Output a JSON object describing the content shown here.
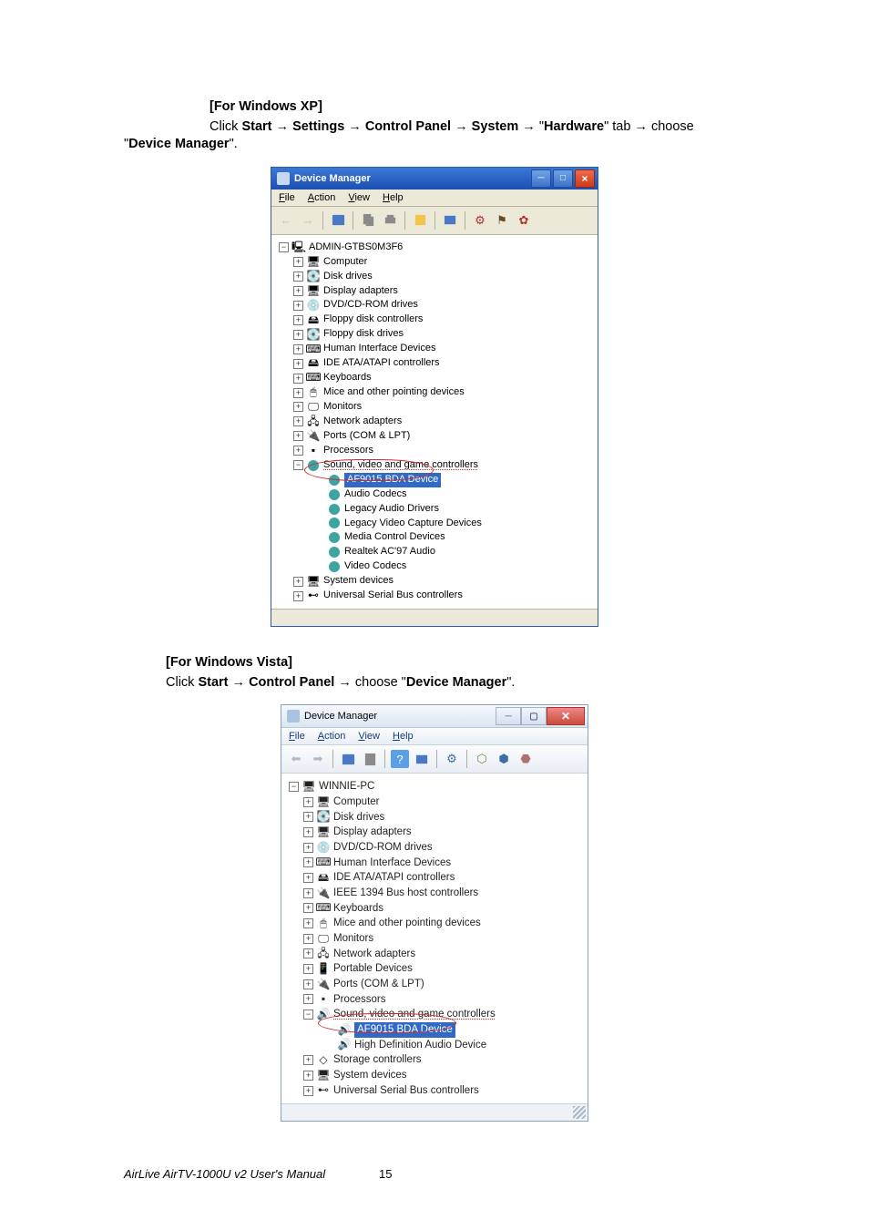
{
  "os_section_xp": {
    "heading": "[For Windows XP]",
    "instructions_parts": {
      "click": "Click ",
      "start": "Start",
      "arrow": " → ",
      "settings": "Settings",
      "control_panel": "Control Panel",
      "system": "System",
      "quote_open": " \"",
      "hardware": "Hardware",
      "hardware_suffix": "\" tab",
      "choose": " choose \"",
      "device_manager": "Device Manager",
      "end_quote": "\"."
    }
  },
  "os_section_vista": {
    "heading": "[For Windows Vista]",
    "instructions_parts": {
      "click": "Click ",
      "start": "Start",
      "arrow": " → ",
      "control_panel": "Control Panel",
      "choose": " choose \"",
      "device_manager": "Device Manager",
      "end_quote": "\"."
    }
  },
  "dm_xp": {
    "title": "Device Manager",
    "menubar": [
      "File",
      "Action",
      "View",
      "Help"
    ],
    "root": "ADMIN-GTBS0M3F6",
    "nodes": [
      {
        "label": "Computer",
        "exp": "+"
      },
      {
        "label": "Disk drives",
        "exp": "+"
      },
      {
        "label": "Display adapters",
        "exp": "+"
      },
      {
        "label": "DVD/CD-ROM drives",
        "exp": "+"
      },
      {
        "label": "Floppy disk controllers",
        "exp": "+"
      },
      {
        "label": "Floppy disk drives",
        "exp": "+"
      },
      {
        "label": "Human Interface Devices",
        "exp": "+"
      },
      {
        "label": "IDE ATA/ATAPI controllers",
        "exp": "+"
      },
      {
        "label": "Keyboards",
        "exp": "+"
      },
      {
        "label": "Mice and other pointing devices",
        "exp": "+"
      },
      {
        "label": "Monitors",
        "exp": "+"
      },
      {
        "label": "Network adapters",
        "exp": "+"
      },
      {
        "label": "Ports (COM & LPT)",
        "exp": "+"
      },
      {
        "label": "Processors",
        "exp": "+"
      }
    ],
    "sound_node": "Sound, video and game controllers",
    "sound_children": [
      "AF9015 BDA Device",
      "Audio Codecs",
      "Legacy Audio Drivers",
      "Legacy Video Capture Devices",
      "Media Control Devices",
      "Realtek AC'97 Audio",
      "Video Codecs"
    ],
    "tail_nodes": [
      {
        "label": "System devices",
        "exp": "+"
      },
      {
        "label": "Universal Serial Bus controllers",
        "exp": "+"
      }
    ]
  },
  "dm_vista": {
    "title": "Device Manager",
    "menubar": [
      "File",
      "Action",
      "View",
      "Help"
    ],
    "root": "WINNIE-PC",
    "nodes": [
      {
        "label": "Computer",
        "exp": "+"
      },
      {
        "label": "Disk drives",
        "exp": "+"
      },
      {
        "label": "Display adapters",
        "exp": "+"
      },
      {
        "label": "DVD/CD-ROM drives",
        "exp": "+"
      },
      {
        "label": "Human Interface Devices",
        "exp": "+"
      },
      {
        "label": "IDE ATA/ATAPI controllers",
        "exp": "+"
      },
      {
        "label": "IEEE 1394 Bus host controllers",
        "exp": "+"
      },
      {
        "label": "Keyboards",
        "exp": "+"
      },
      {
        "label": "Mice and other pointing devices",
        "exp": "+"
      },
      {
        "label": "Monitors",
        "exp": "+"
      },
      {
        "label": "Network adapters",
        "exp": "+"
      },
      {
        "label": "Portable Devices",
        "exp": "+"
      },
      {
        "label": "Ports (COM & LPT)",
        "exp": "+"
      },
      {
        "label": "Processors",
        "exp": "+"
      }
    ],
    "sound_node": "Sound, video and game controllers",
    "sound_children": [
      "AF9015 BDA Device",
      "High Definition Audio Device"
    ],
    "tail_nodes": [
      {
        "label": "Storage controllers",
        "exp": "+"
      },
      {
        "label": "System devices",
        "exp": "+"
      },
      {
        "label": "Universal Serial Bus controllers",
        "exp": "+"
      }
    ]
  },
  "footer": {
    "text": "AirLive AirTV-1000U v2 User's Manual",
    "page": "15"
  },
  "colors": {
    "xp_title_gradient_top": "#3b78d6",
    "xp_title_gradient_bottom": "#1c4fb3",
    "xp_menu_bg": "#ece9d8",
    "selection_bg": "#316AC5",
    "circle": "#d32a2a",
    "vista_menu_text": "#153d7a"
  }
}
